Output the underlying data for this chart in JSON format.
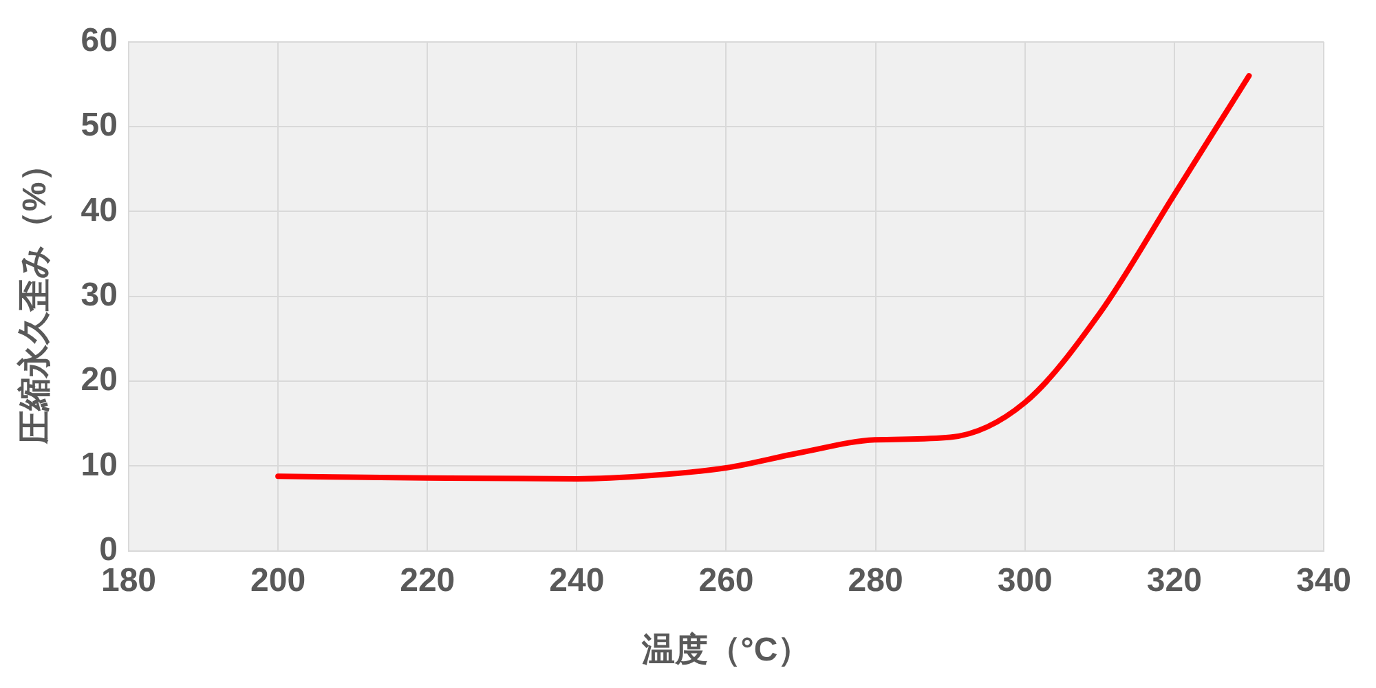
{
  "chart_data": {
    "type": "line",
    "xlabel": "温度（°C）",
    "ylabel": "圧縮永久歪み（%）",
    "x": [
      200,
      220,
      240,
      250,
      260,
      270,
      280,
      290,
      300,
      310,
      320,
      330
    ],
    "series": [
      {
        "color": "#ff0000",
        "values": [
          8.8,
          8.6,
          8.5,
          8.9,
          9.8,
          11.6,
          13.1,
          13.4,
          17.5,
          28,
          42,
          56
        ]
      }
    ],
    "xlim": [
      180,
      340
    ],
    "xticks": [
      180,
      200,
      220,
      240,
      260,
      280,
      300,
      320,
      340
    ],
    "ylim": [
      0,
      60
    ],
    "yticks": [
      0,
      10,
      20,
      30,
      40,
      50,
      60
    ],
    "grid": true,
    "legend": false,
    "marker": "none",
    "line_style": "solid"
  }
}
